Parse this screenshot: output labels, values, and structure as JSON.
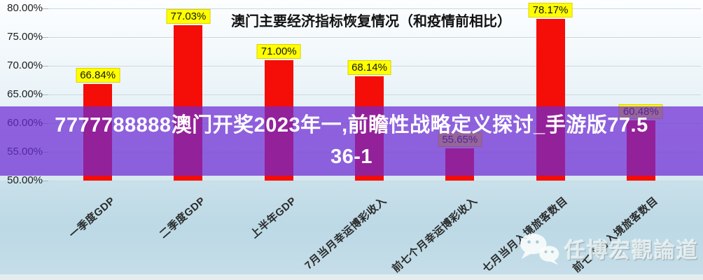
{
  "banner": {
    "line1": "7777788888澳门开奖2023年一,前瞻性战略定义探讨_手游版77.5",
    "line2": "36-1",
    "bg_color": "#6e2ad4",
    "text_color": "#ffffff"
  },
  "watermark": {
    "label": "任博宏觀論道",
    "icon": "wechat-icon"
  },
  "chart_data": {
    "type": "bar",
    "title": "澳门主要经济指标恢复情况（和疫情前相比）",
    "categories": [
      "一季度GDP",
      "二季度GDP",
      "上半年GDP",
      "7月当月幸运博彩收入",
      "前七个月幸运博彩收入",
      "七月当月入境旅客数目",
      "前七个月入境旅客数目"
    ],
    "values": [
      66.84,
      77.03,
      71.0,
      68.14,
      55.65,
      78.17,
      60.48
    ],
    "value_labels": [
      "66.84%",
      "77.03%",
      "71.00%",
      "68.14%",
      "55.65%",
      "78.17%",
      "60.48%"
    ],
    "ytick_values": [
      80,
      75,
      70,
      65,
      60,
      55,
      50
    ],
    "ytick_labels": [
      "80.00%",
      "75.00%",
      "70.00%",
      "65.00%",
      "60.00%",
      "55.00%",
      "50.00%"
    ],
    "ylim": [
      50,
      80
    ],
    "grid": true,
    "legend": false,
    "xlabel": "",
    "ylabel": "",
    "colors": {
      "bar": "#f50d07",
      "value_label_bg": "#ffff00",
      "value_label_border": "#ddd100"
    }
  }
}
